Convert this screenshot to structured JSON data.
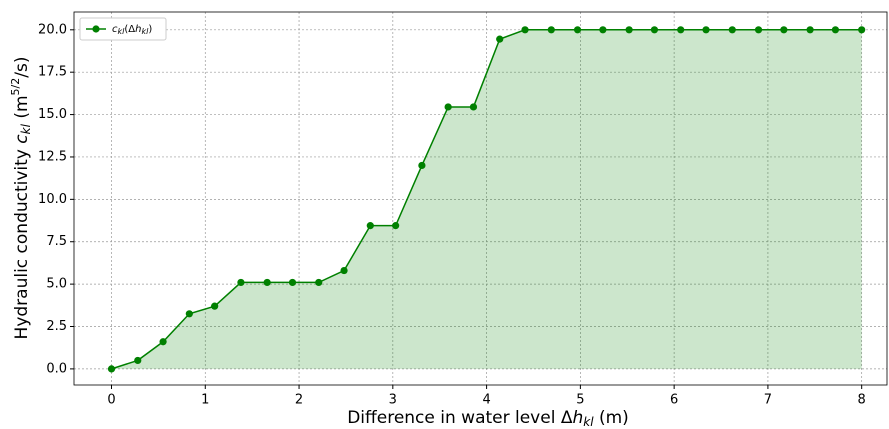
{
  "chart_data": {
    "type": "line",
    "xlabel": [
      "Difference in water level Δ",
      "h",
      "kl",
      " (m)"
    ],
    "ylabel": [
      "Hydraulic conductivity ",
      "c",
      "kl",
      " (m",
      "5/2",
      "/s)"
    ],
    "legend_label": [
      "c",
      "kl",
      "(Δ",
      "h",
      "kl",
      ")"
    ],
    "x": [
      0,
      0.28,
      0.55,
      0.83,
      1.1,
      1.38,
      1.66,
      1.93,
      2.21,
      2.48,
      2.76,
      3.03,
      3.31,
      3.59,
      3.86,
      4.14,
      4.41,
      4.69,
      4.97,
      5.24,
      5.52,
      5.79,
      6.07,
      6.34,
      6.62,
      6.9,
      7.17,
      7.45,
      7.72,
      8
    ],
    "series": [
      {
        "name": "c_kl(Δh_kl)",
        "color": "#008000",
        "values": [
          0,
          0.5,
          1.6,
          3.25,
          3.7,
          5.1,
          5.1,
          5.1,
          5.1,
          5.8,
          8.45,
          8.45,
          12.0,
          15.45,
          15.45,
          19.45,
          20,
          20,
          20,
          20,
          20,
          20,
          20,
          20,
          20,
          20,
          20,
          20,
          20,
          20
        ]
      }
    ],
    "fill": true,
    "xlim": [
      -0.4,
      8.27
    ],
    "ylim": [
      -0.95,
      21.05
    ],
    "xticks": [
      0,
      1,
      2,
      3,
      4,
      5,
      6,
      7,
      8
    ],
    "yticks": [
      {
        "value": 0,
        "label": "0.0"
      },
      {
        "value": 2.5,
        "label": "2.5"
      },
      {
        "value": 5,
        "label": "5.0"
      },
      {
        "value": 7.5,
        "label": "7.5"
      },
      {
        "value": 10,
        "label": "10.0"
      },
      {
        "value": 12.5,
        "label": "12.5"
      },
      {
        "value": 15,
        "label": "15.0"
      },
      {
        "value": 17.5,
        "label": "17.5"
      },
      {
        "value": 20,
        "label": "20.0"
      }
    ],
    "grid": true,
    "legend_position": "upper left"
  }
}
